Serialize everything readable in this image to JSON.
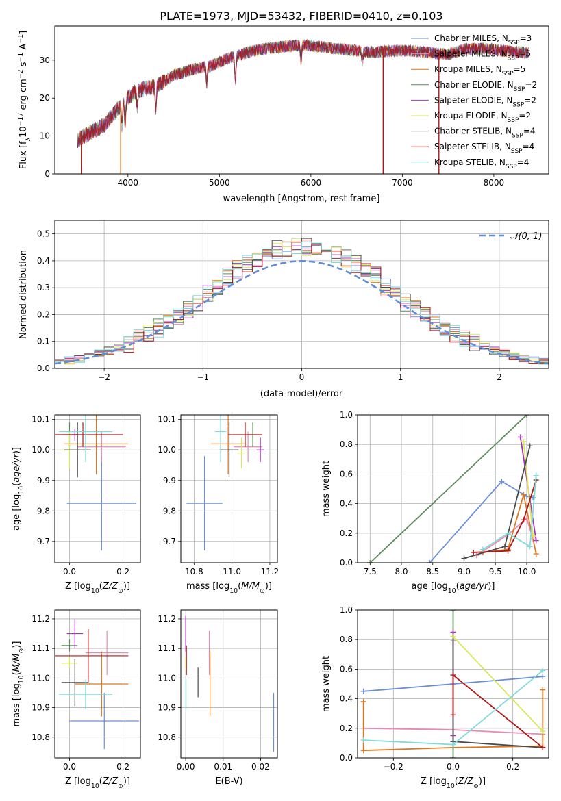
{
  "figure": {
    "title": "PLATE=1973, MJD=53432, FIBERID=0410, z=0.103"
  },
  "models": [
    {
      "label": "Chabrier MILES, N",
      "sub": "SSP",
      "tail": "=3",
      "color": "#6a8fd6"
    },
    {
      "label": "Salpeter MILES, N",
      "sub": "SSP",
      "tail": "=5",
      "color": "#e58bb4"
    },
    {
      "label": "Kroupa MILES, N",
      "sub": "SSP",
      "tail": "=5",
      "color": "#e0761c"
    },
    {
      "label": "Chabrier ELODIE, N",
      "sub": "SSP",
      "tail": "=2",
      "color": "#5b8c5a"
    },
    {
      "label": "Salpeter ELODIE, N",
      "sub": "SSP",
      "tail": "=2",
      "color": "#a234b8"
    },
    {
      "label": "Kroupa ELODIE, N",
      "sub": "SSP",
      "tail": "=2",
      "color": "#d9e85a"
    },
    {
      "label": "Chabrier STELIB, N",
      "sub": "SSP",
      "tail": "=4",
      "color": "#4a4a4a"
    },
    {
      "label": "Salpeter STELIB, N",
      "sub": "SSP",
      "tail": "=4",
      "color": "#b01818"
    },
    {
      "label": "Kroupa STELIB, N",
      "sub": "SSP",
      "tail": "=4",
      "color": "#7fdbdb"
    }
  ],
  "chart_data": [
    {
      "id": "spectrum",
      "type": "line",
      "xlabel": "wavelength [Angstrom, rest frame]",
      "ylabel": "Flux [fλ10⁻¹⁷ erg cm⁻² s⁻¹ A⁻¹]",
      "xlim": [
        3200,
        8600
      ],
      "ylim": [
        0,
        39
      ],
      "xticks": [
        4000,
        5000,
        6000,
        7000,
        8000
      ],
      "yticks": [
        0,
        10,
        20,
        30
      ],
      "legend": "top-right",
      "continuum": [
        [
          3450,
          9
        ],
        [
          3600,
          11
        ],
        [
          3750,
          13
        ],
        [
          3950,
          19
        ],
        [
          4100,
          22
        ],
        [
          4300,
          23
        ],
        [
          4500,
          26
        ],
        [
          4700,
          27.5
        ],
        [
          4900,
          28.5
        ],
        [
          5100,
          30.5
        ],
        [
          5300,
          32
        ],
        [
          5500,
          33
        ],
        [
          5700,
          33.5
        ],
        [
          5900,
          34
        ],
        [
          6100,
          33.5
        ],
        [
          6300,
          33
        ],
        [
          6500,
          32.5
        ],
        [
          6700,
          32
        ],
        [
          6900,
          32.5
        ],
        [
          7100,
          32.5
        ],
        [
          7300,
          32
        ],
        [
          7500,
          31.5
        ],
        [
          7700,
          33
        ],
        [
          7900,
          33
        ],
        [
          8100,
          32.5
        ],
        [
          8300,
          32
        ],
        [
          8380,
          32
        ]
      ],
      "spikes_to_zero": [
        [
          3490,
          3
        ]
      ],
      "dropouts": [
        [
          3490,
          7
        ],
        [
          3920,
          2
        ],
        [
          6790,
          7
        ],
        [
          7400,
          7
        ]
      ]
    },
    {
      "id": "residual-histogram",
      "type": "histogram",
      "xlabel": "(data-model)/error",
      "ylabel": "Normed distribution",
      "xlim": [
        -2.5,
        2.5
      ],
      "ylim": [
        0,
        0.55
      ],
      "xticks": [
        -2,
        -1,
        0,
        1,
        2
      ],
      "yticks": [
        0.0,
        0.1,
        0.2,
        0.3,
        0.4,
        0.5
      ],
      "reference_label": "𝒩(0, 1)",
      "reference_color": "#5f8ed6",
      "bin_width": 0.1
    },
    {
      "id": "age-vs-Z",
      "type": "scatter",
      "xlabel": "Z [log10(Z/Z⊙)]",
      "ylabel": "age  [log10(age/yr)]",
      "xlim": [
        -0.055,
        0.265
      ],
      "ylim": [
        9.63,
        10.115
      ],
      "xticks": [
        0.0,
        0.2
      ],
      "yticks": [
        9.7,
        9.8,
        9.9,
        10.0,
        10.1
      ],
      "points": [
        {
          "m": 0,
          "x": 0.12,
          "y": 9.825,
          "ex": 0.13,
          "ey": 0.155
        },
        {
          "m": 1,
          "x": 0.12,
          "y": 10.01,
          "ex": 0.09,
          "ey": 0.05
        },
        {
          "m": 2,
          "x": 0.1,
          "y": 10.02,
          "ex": 0.12,
          "ey": 0.1
        },
        {
          "m": 3,
          "x": 0.0,
          "y": 10.05,
          "ex": 0.03,
          "ey": 0.04
        },
        {
          "m": 4,
          "x": 0.02,
          "y": 10.05,
          "ex": 0.02,
          "ey": 0.02
        },
        {
          "m": 5,
          "x": 0.0,
          "y": 10.0,
          "ex": 0.03,
          "ey": 0.06
        },
        {
          "m": 6,
          "x": 0.03,
          "y": 10.0,
          "ex": 0.05,
          "ey": 0.09
        },
        {
          "m": 7,
          "x": 0.05,
          "y": 10.05,
          "ex": 0.15,
          "ey": 0.04
        },
        {
          "m": 8,
          "x": 0.06,
          "y": 10.06,
          "ex": 0.1,
          "ey": 0.1
        }
      ]
    },
    {
      "id": "age-vs-mass",
      "type": "scatter",
      "xlabel": "mass [log10(M/M⊙)]",
      "ylabel": "",
      "xlim": [
        10.73,
        11.24
      ],
      "ylim": [
        9.63,
        10.115
      ],
      "xticks": [
        10.8,
        11.0,
        11.2
      ],
      "yticks": [
        9.7,
        9.8,
        9.9,
        10.0,
        10.1
      ],
      "points": [
        {
          "m": 0,
          "x": 10.855,
          "y": 9.825,
          "ex": 0.095,
          "ey": 0.155
        },
        {
          "m": 1,
          "x": 11.085,
          "y": 10.01,
          "ex": 0.075,
          "ey": 0.05
        },
        {
          "m": 2,
          "x": 10.98,
          "y": 10.02,
          "ex": 0.09,
          "ey": 0.1
        },
        {
          "m": 3,
          "x": 11.11,
          "y": 10.05,
          "ex": 0.02,
          "ey": 0.04
        },
        {
          "m": 4,
          "x": 11.15,
          "y": 10.0,
          "ex": 0.02,
          "ey": 0.04
        },
        {
          "m": 5,
          "x": 11.05,
          "y": 9.99,
          "ex": 0.02,
          "ey": 0.05
        },
        {
          "m": 6,
          "x": 10.985,
          "y": 10.0,
          "ex": 0.05,
          "ey": 0.09
        },
        {
          "m": 7,
          "x": 11.07,
          "y": 10.05,
          "ex": 0.09,
          "ey": 0.04
        },
        {
          "m": 8,
          "x": 10.94,
          "y": 10.06,
          "ex": 0.03,
          "ey": 0.1
        }
      ]
    },
    {
      "id": "massweight-vs-age",
      "type": "line",
      "xlabel": "age  [log10(age/yr)]",
      "ylabel": "mass weight",
      "xlim": [
        7.3,
        10.35
      ],
      "ylim": [
        0,
        1
      ],
      "xticks": [
        7.5,
        8.0,
        8.5,
        9.0,
        9.5,
        10.0
      ],
      "yticks": [
        0.0,
        0.2,
        0.4,
        0.6,
        0.8,
        1.0
      ],
      "series": [
        {
          "m": 0,
          "x": [
            8.45,
            9.6,
            10.0,
            10.1
          ],
          "y": [
            0.0,
            0.55,
            0.45,
            0.44
          ]
        },
        {
          "m": 1,
          "x": [
            9.2,
            9.7,
            10.0,
            10.1
          ],
          "y": [
            0.05,
            0.19,
            0.3,
            0.16
          ]
        },
        {
          "m": 2,
          "x": [
            9.3,
            9.7,
            9.95,
            10.15
          ],
          "y": [
            0.07,
            0.09,
            0.46,
            0.06
          ]
        },
        {
          "m": 3,
          "x": [
            7.5,
            10.0
          ],
          "y": [
            0.0,
            1.0
          ]
        },
        {
          "m": 4,
          "x": [
            9.9,
            10.15
          ],
          "y": [
            0.85,
            0.15
          ]
        },
        {
          "m": 5,
          "x": [
            9.95,
            10.1
          ],
          "y": [
            0.82,
            0.18
          ]
        },
        {
          "m": 6,
          "x": [
            9.0,
            9.65,
            10.05
          ],
          "y": [
            0.03,
            0.11,
            0.79
          ]
        },
        {
          "m": 7,
          "x": [
            9.15,
            9.7,
            9.95,
            10.15
          ],
          "y": [
            0.07,
            0.08,
            0.29,
            0.56
          ]
        },
        {
          "m": 8,
          "x": [
            9.3,
            9.7,
            10.05,
            10.15
          ],
          "y": [
            0.09,
            0.2,
            0.11,
            0.59
          ]
        }
      ]
    },
    {
      "id": "mass-vs-Z",
      "type": "scatter",
      "xlabel": "Z [log10(Z/Z⊙)]",
      "ylabel": "mass [log10(M/M⊙)]",
      "xlim": [
        -0.055,
        0.265
      ],
      "ylim": [
        10.73,
        11.23
      ],
      "xticks": [
        0.0,
        0.2
      ],
      "yticks": [
        10.8,
        10.9,
        11.0,
        11.1,
        11.2
      ],
      "points": [
        {
          "m": 0,
          "x": 0.13,
          "y": 10.855,
          "ex": 0.13,
          "ey": 0.095
        },
        {
          "m": 1,
          "x": 0.14,
          "y": 11.085,
          "ex": 0.08,
          "ey": 0.075
        },
        {
          "m": 2,
          "x": 0.12,
          "y": 10.98,
          "ex": 0.1,
          "ey": 0.11
        },
        {
          "m": 3,
          "x": 0.0,
          "y": 11.11,
          "ex": 0.03,
          "ey": 0.02
        },
        {
          "m": 4,
          "x": 0.02,
          "y": 11.15,
          "ex": 0.03,
          "ey": 0.05
        },
        {
          "m": 5,
          "x": 0.0,
          "y": 11.05,
          "ex": 0.03,
          "ey": 0.02
        },
        {
          "m": 6,
          "x": 0.02,
          "y": 10.985,
          "ex": 0.05,
          "ey": 0.08
        },
        {
          "m": 7,
          "x": 0.07,
          "y": 11.075,
          "ex": 0.15,
          "ey": 0.09
        },
        {
          "m": 8,
          "x": 0.06,
          "y": 10.945,
          "ex": 0.1,
          "ey": 0.05
        }
      ]
    },
    {
      "id": "mass-vs-EBV",
      "type": "scatter",
      "xlabel": "E(B-V)",
      "ylabel": "",
      "xlim": [
        -0.0013,
        0.0245
      ],
      "ylim": [
        10.73,
        11.23
      ],
      "xticks": [
        0.0,
        0.01,
        0.02
      ],
      "yticks": [
        10.8,
        10.9,
        11.0,
        11.1,
        11.2
      ],
      "points": [
        {
          "m": 0,
          "x": 0.0235,
          "y": 10.85,
          "ex": 0,
          "ey": 0.1
        },
        {
          "m": 1,
          "x": 0.0063,
          "y": 11.085,
          "ex": 0,
          "ey": 0.075
        },
        {
          "m": 2,
          "x": 0.0065,
          "y": 10.98,
          "ex": 0,
          "ey": 0.11
        },
        {
          "m": 3,
          "x": 0.0,
          "y": 11.11,
          "ex": 0,
          "ey": 0.02
        },
        {
          "m": 4,
          "x": 0.0,
          "y": 11.15,
          "ex": 0,
          "ey": 0.06
        },
        {
          "m": 5,
          "x": 0.0,
          "y": 11.05,
          "ex": 0,
          "ey": 0.02
        },
        {
          "m": 6,
          "x": 0.0033,
          "y": 10.985,
          "ex": 0,
          "ey": 0.05
        },
        {
          "m": 7,
          "x": 0.0002,
          "y": 11.06,
          "ex": 0,
          "ey": 0.05
        },
        {
          "m": 8,
          "x": 0.0001,
          "y": 10.945,
          "ex": 0,
          "ey": 0.05
        }
      ]
    },
    {
      "id": "massweight-vs-Z",
      "type": "line",
      "xlabel": "Z [log10(Z/Z⊙)]",
      "ylabel": "mass weight",
      "xlim": [
        -0.32,
        0.32
      ],
      "ylim": [
        0,
        1
      ],
      "xticks": [
        -0.2,
        0.0,
        0.2
      ],
      "yticks": [
        0.0,
        0.2,
        0.4,
        0.6,
        0.8,
        1.0
      ],
      "series": [
        {
          "m": 0,
          "x": [
            -0.3,
            0.0,
            0.3
          ],
          "y": [
            0.45,
            0.5,
            0.55
          ]
        },
        {
          "m": 1,
          "x": [
            -0.3,
            0.0,
            0.3
          ],
          "y": [
            0.2,
            0.19,
            0.16
          ]
        },
        {
          "m": 2,
          "x": [
            -0.3,
            -0.3,
            0.0,
            0.3,
            0.3
          ],
          "y": [
            0.38,
            0.05,
            0.07,
            0.08,
            0.46
          ]
        },
        {
          "m": 3,
          "x": [
            0.0,
            0.0
          ],
          "y": [
            1.0,
            0.0
          ]
        },
        {
          "m": 4,
          "x": [
            0.0,
            0.0
          ],
          "y": [
            0.85,
            0.15
          ]
        },
        {
          "m": 5,
          "x": [
            0.0,
            0.3
          ],
          "y": [
            0.82,
            0.18
          ]
        },
        {
          "m": 6,
          "x": [
            0.0,
            0.0,
            0.3
          ],
          "y": [
            0.79,
            0.11,
            0.07
          ]
        },
        {
          "m": 7,
          "x": [
            0.0,
            0.0,
            0.3
          ],
          "y": [
            0.29,
            0.56,
            0.07
          ]
        },
        {
          "m": 8,
          "x": [
            -0.3,
            0.0,
            0.3
          ],
          "y": [
            0.12,
            0.09,
            0.59
          ]
        }
      ]
    }
  ]
}
